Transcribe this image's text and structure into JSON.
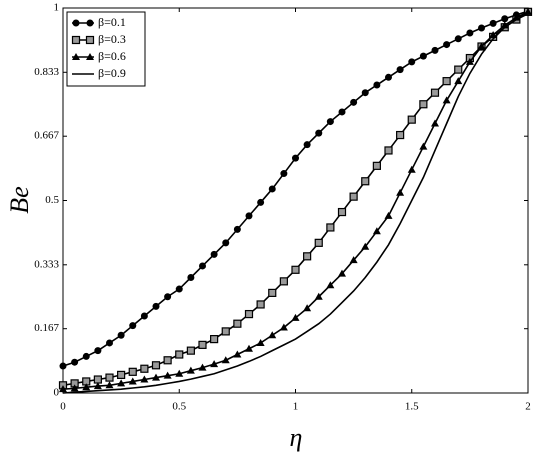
{
  "chart_data": {
    "type": "line",
    "xlabel": "η",
    "ylabel": "Be",
    "x": [
      0,
      0.05,
      0.1,
      0.15,
      0.2,
      0.25,
      0.3,
      0.35,
      0.4,
      0.45,
      0.5,
      0.55,
      0.6,
      0.65,
      0.7,
      0.75,
      0.8,
      0.85,
      0.9,
      0.95,
      1,
      1.05,
      1.1,
      1.15,
      1.2,
      1.25,
      1.3,
      1.35,
      1.4,
      1.45,
      1.5,
      1.55,
      1.6,
      1.65,
      1.7,
      1.75,
      1.8,
      1.85,
      1.9,
      1.95,
      2
    ],
    "series": [
      {
        "name": "β=0.1",
        "color": "#000000",
        "marker": "circle",
        "values": [
          0.07,
          0.08,
          0.095,
          0.11,
          0.13,
          0.15,
          0.175,
          0.2,
          0.225,
          0.25,
          0.27,
          0.3,
          0.33,
          0.36,
          0.39,
          0.425,
          0.46,
          0.495,
          0.53,
          0.57,
          0.61,
          0.645,
          0.675,
          0.705,
          0.73,
          0.755,
          0.78,
          0.8,
          0.82,
          0.84,
          0.86,
          0.875,
          0.89,
          0.905,
          0.92,
          0.935,
          0.948,
          0.96,
          0.972,
          0.982,
          0.992
        ]
      },
      {
        "name": "β=0.3",
        "color": "#000000",
        "marker": "square",
        "values": [
          0.02,
          0.025,
          0.03,
          0.035,
          0.04,
          0.047,
          0.055,
          0.063,
          0.072,
          0.085,
          0.1,
          0.11,
          0.125,
          0.14,
          0.16,
          0.18,
          0.205,
          0.23,
          0.26,
          0.29,
          0.32,
          0.355,
          0.39,
          0.43,
          0.47,
          0.51,
          0.55,
          0.59,
          0.63,
          0.67,
          0.71,
          0.75,
          0.78,
          0.81,
          0.84,
          0.87,
          0.9,
          0.925,
          0.95,
          0.97,
          0.99
        ]
      },
      {
        "name": "β=0.6",
        "color": "#000000",
        "marker": "triangle",
        "values": [
          0.01,
          0.012,
          0.015,
          0.018,
          0.02,
          0.025,
          0.03,
          0.035,
          0.04,
          0.045,
          0.05,
          0.058,
          0.066,
          0.075,
          0.085,
          0.1,
          0.115,
          0.13,
          0.15,
          0.17,
          0.195,
          0.22,
          0.25,
          0.28,
          0.31,
          0.345,
          0.38,
          0.42,
          0.46,
          0.52,
          0.58,
          0.64,
          0.7,
          0.76,
          0.81,
          0.86,
          0.9,
          0.93,
          0.955,
          0.975,
          0.99
        ]
      },
      {
        "name": "β=0.9",
        "color": "#000000",
        "marker": "none",
        "values": [
          0,
          0.002,
          0.004,
          0.006,
          0.008,
          0.01,
          0.013,
          0.016,
          0.02,
          0.025,
          0.03,
          0.036,
          0.043,
          0.05,
          0.06,
          0.07,
          0.082,
          0.095,
          0.11,
          0.125,
          0.14,
          0.16,
          0.18,
          0.205,
          0.235,
          0.265,
          0.3,
          0.34,
          0.385,
          0.44,
          0.5,
          0.56,
          0.63,
          0.7,
          0.77,
          0.83,
          0.88,
          0.92,
          0.95,
          0.97,
          0.985
        ]
      }
    ],
    "xlim": [
      0,
      2
    ],
    "xticks": [
      0,
      0.5,
      1,
      1.5,
      2
    ],
    "ylim": [
      0,
      1
    ],
    "yticks": [
      0,
      0.167,
      0.333,
      0.5,
      0.667,
      0.833,
      1
    ],
    "grid": false,
    "legend": "upper-left"
  }
}
